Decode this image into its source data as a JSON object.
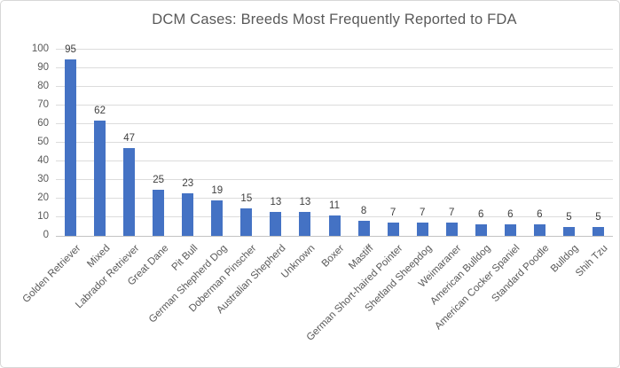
{
  "chart": {
    "title": "DCM Cases: Breeds Most Frequently Reported to FDA"
  },
  "chart_data": {
    "type": "bar",
    "title": "DCM Cases: Breeds Most Frequently Reported to FDA",
    "categories": [
      "Golden Retriever",
      "Mixed",
      "Labrador Retriever",
      "Great Dane",
      "Pit Bull",
      "German Shepherd Dog",
      "Doberman Pinscher",
      "Australian Shepherd",
      "Unknown",
      "Boxer",
      "Mastiff",
      "German Short-haired Pointer",
      "Shetland Sheepdog",
      "Weimaraner",
      "American Bulldog",
      "American Cocker Spaniel",
      "Standard Poodle",
      "Bulldog",
      "Shih Tzu"
    ],
    "values": [
      95,
      62,
      47,
      25,
      23,
      19,
      15,
      13,
      13,
      11,
      8,
      7,
      7,
      7,
      6,
      6,
      6,
      5,
      5
    ],
    "data_labels": [
      95,
      62,
      47,
      25,
      23,
      19,
      15,
      13,
      13,
      11,
      8,
      7,
      7,
      7,
      6,
      6,
      6,
      5,
      5
    ],
    "xlabel": "",
    "ylabel": "",
    "ylim": [
      0,
      100
    ],
    "yticks": [
      0,
      10,
      20,
      30,
      40,
      50,
      60,
      70,
      80,
      90,
      100
    ],
    "grid": true,
    "legend": false
  },
  "colors": {
    "bar": "#4472c4",
    "gridline": "#dcdcdc",
    "axis_line": "#c3c3c3",
    "title_text": "#595959",
    "axis_text": "#595959",
    "data_label_text": "#404040",
    "border": "#d7d7d7",
    "background": "#ffffff"
  }
}
